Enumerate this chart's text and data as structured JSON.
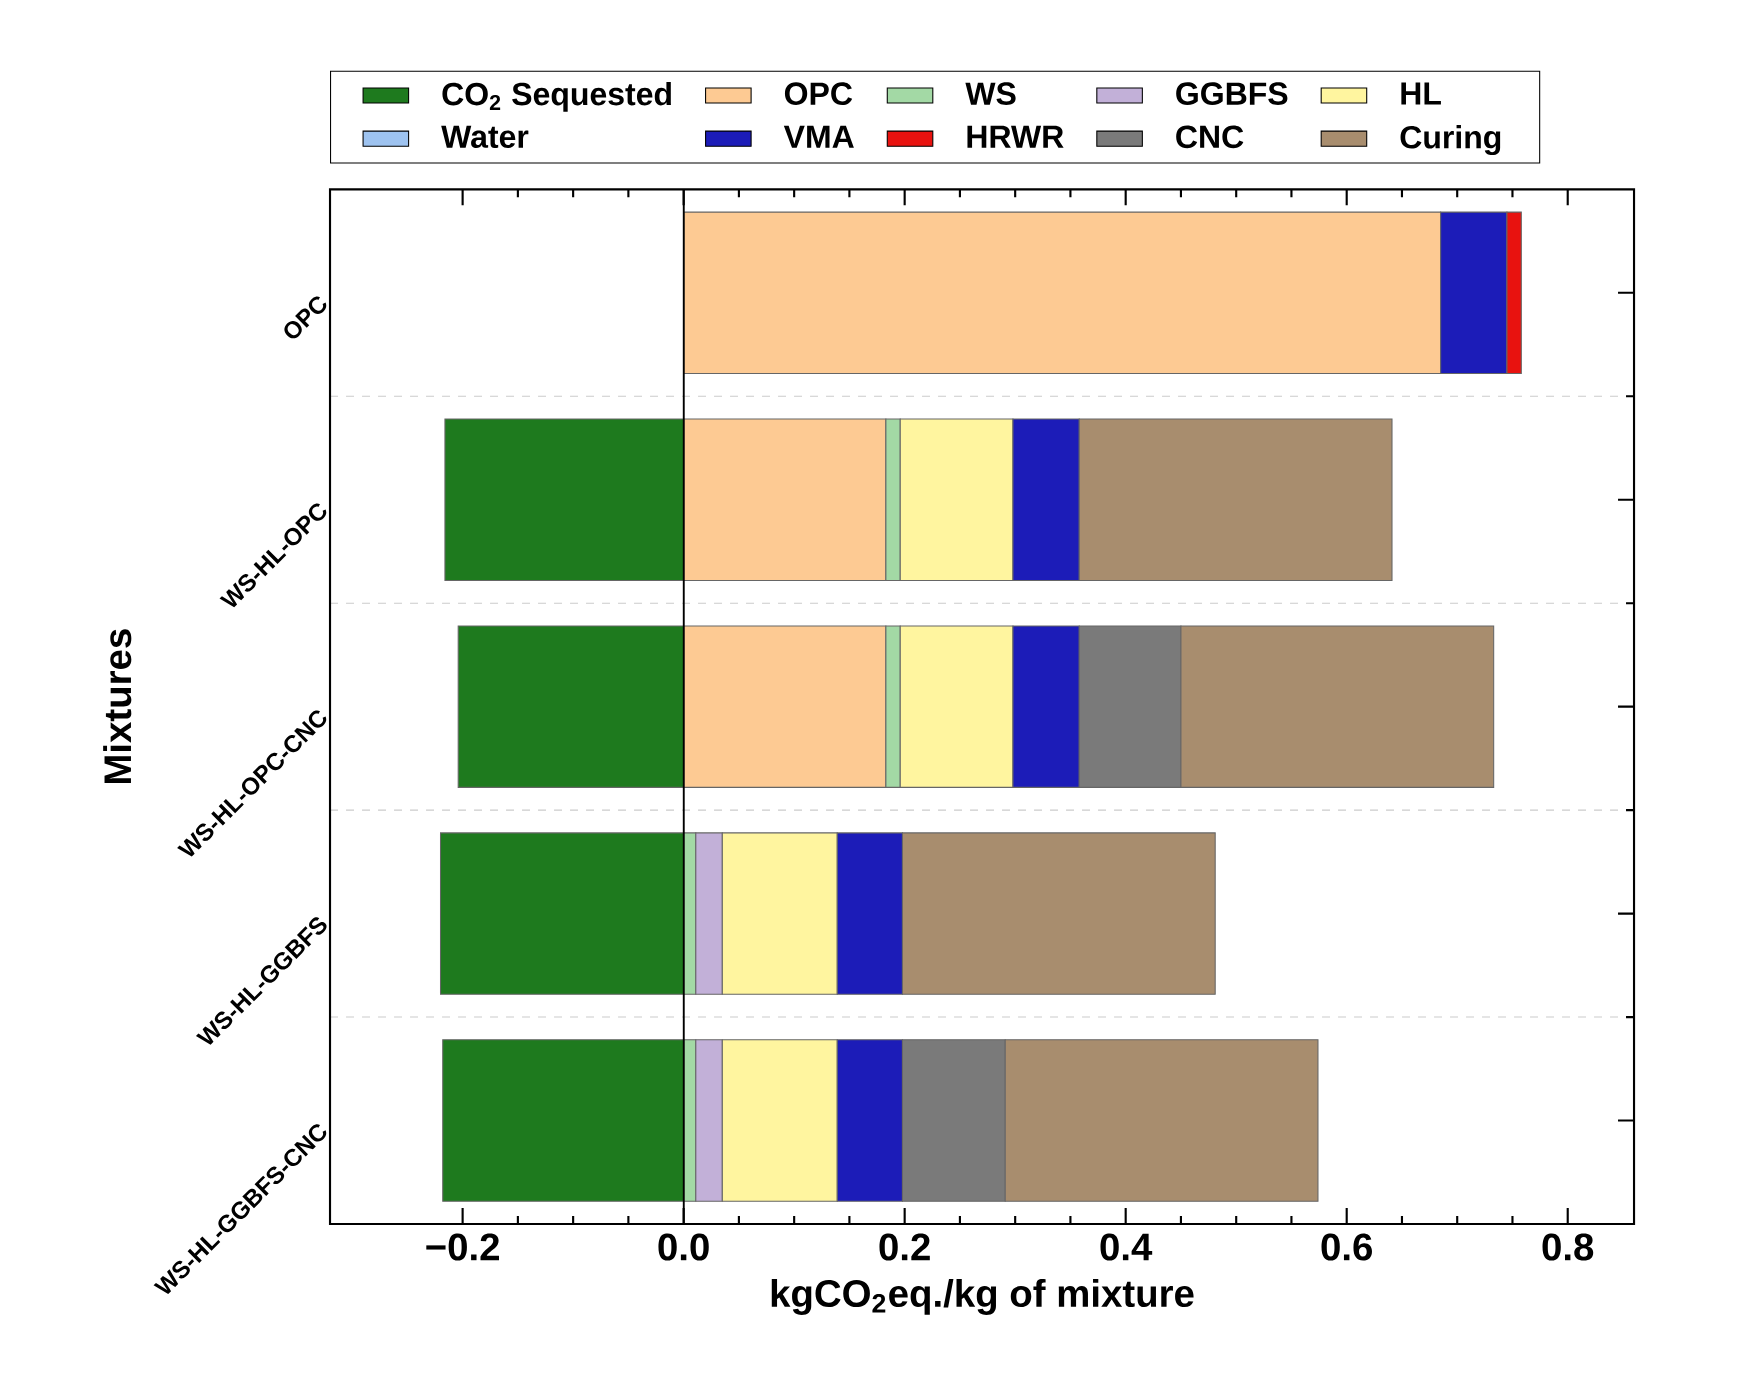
{
  "chart_data": {
    "type": "bar",
    "orientation": "horizontal",
    "stacked": true,
    "xlabel": "kgCO$_{2}$eq./kg of mixture",
    "ylabel": "Mixtures",
    "categories": [
      "OPC",
      "WS-HL-OPC",
      "WS-HL-OPC-CNC",
      "WS-HL-GGBFS",
      "WS-HL-GGBFS-CNC"
    ],
    "series": [
      {
        "name": "CO$_{2}$ Sequested",
        "color": "#1e7a1e",
        "values": [
          null,
          -0.216,
          -0.204,
          -0.22,
          -0.218
        ]
      },
      {
        "name": "OPC",
        "color": "#fdca93",
        "values": [
          0.685,
          0.183,
          0.183,
          null,
          null
        ]
      },
      {
        "name": "WS",
        "color": "#a3d9a5",
        "values": [
          null,
          0.013,
          0.013,
          0.011,
          0.011
        ]
      },
      {
        "name": "GGBFS",
        "color": "#c2b0d8",
        "values": [
          null,
          null,
          null,
          0.024,
          0.024
        ]
      },
      {
        "name": "HL",
        "color": "#fff59f",
        "values": [
          null,
          0.102,
          0.102,
          0.104,
          0.104
        ]
      },
      {
        "name": "Water",
        "color": "#9ec3f0",
        "values": [
          null,
          null,
          null,
          null,
          null
        ]
      },
      {
        "name": "VMA",
        "color": "#1c1cb8",
        "values": [
          0.06,
          0.06,
          0.06,
          0.059,
          0.059
        ]
      },
      {
        "name": "HRWR",
        "color": "#e8120f",
        "values": [
          0.013,
          null,
          null,
          null,
          null
        ]
      },
      {
        "name": "CNC",
        "color": "#7a7a7a",
        "values": [
          null,
          null,
          0.092,
          null,
          0.093
        ]
      },
      {
        "name": "Curing",
        "color": "#a88d6e",
        "values": [
          null,
          0.283,
          0.283,
          0.283,
          0.283
        ]
      }
    ],
    "xlim": [
      -0.32,
      0.86
    ],
    "xticks": [
      {
        "value": -0.2,
        "label": "−0.2"
      },
      {
        "value": 0,
        "label": "0.0"
      },
      {
        "value": 0.2,
        "label": "0.2"
      },
      {
        "value": 0.4,
        "label": "0.4"
      },
      {
        "value": 0.6,
        "label": "0.6"
      },
      {
        "value": 0.8,
        "label": "0.8"
      }
    ],
    "ref_lines": [
      {
        "axis": "x",
        "value": 0,
        "color": "#000000"
      }
    ],
    "grid": "y",
    "legend": "top"
  }
}
